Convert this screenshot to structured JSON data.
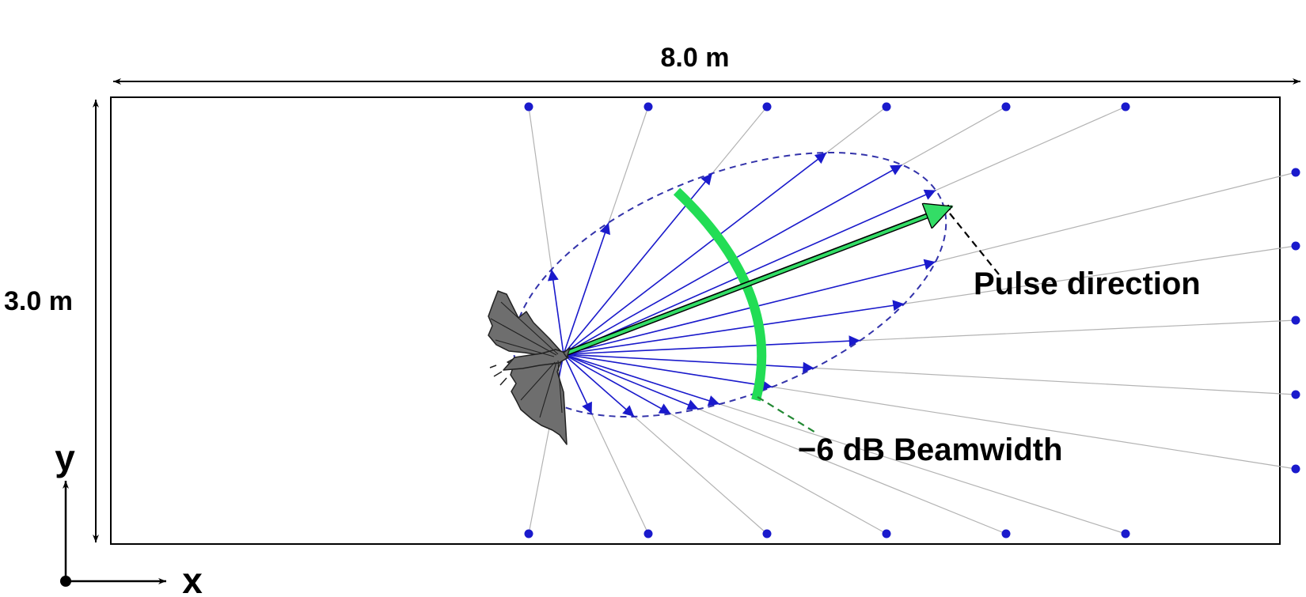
{
  "labels": {
    "width": "8.0 m",
    "height": "3.0 m",
    "pulse_direction": "Pulse direction",
    "beamwidth": "−6 dB Beamwidth",
    "axis_x": "x",
    "axis_y": "y"
  },
  "colors": {
    "frame": "#000000",
    "ray_short": "#1a1acc",
    "ray_long": "#b3b3b3",
    "microphone": "#1a1acc",
    "ellipse": "#3333aa",
    "pulse_arrow": "#33dd66",
    "beam_arc": "#22dd55",
    "leader_pulse": "#000000",
    "leader_beam": "#228833",
    "bat_fill": "#6e6e6e"
  },
  "icons": {
    "bat": "bat-silhouette-icon",
    "microphone": "microphone-dot-icon"
  }
}
